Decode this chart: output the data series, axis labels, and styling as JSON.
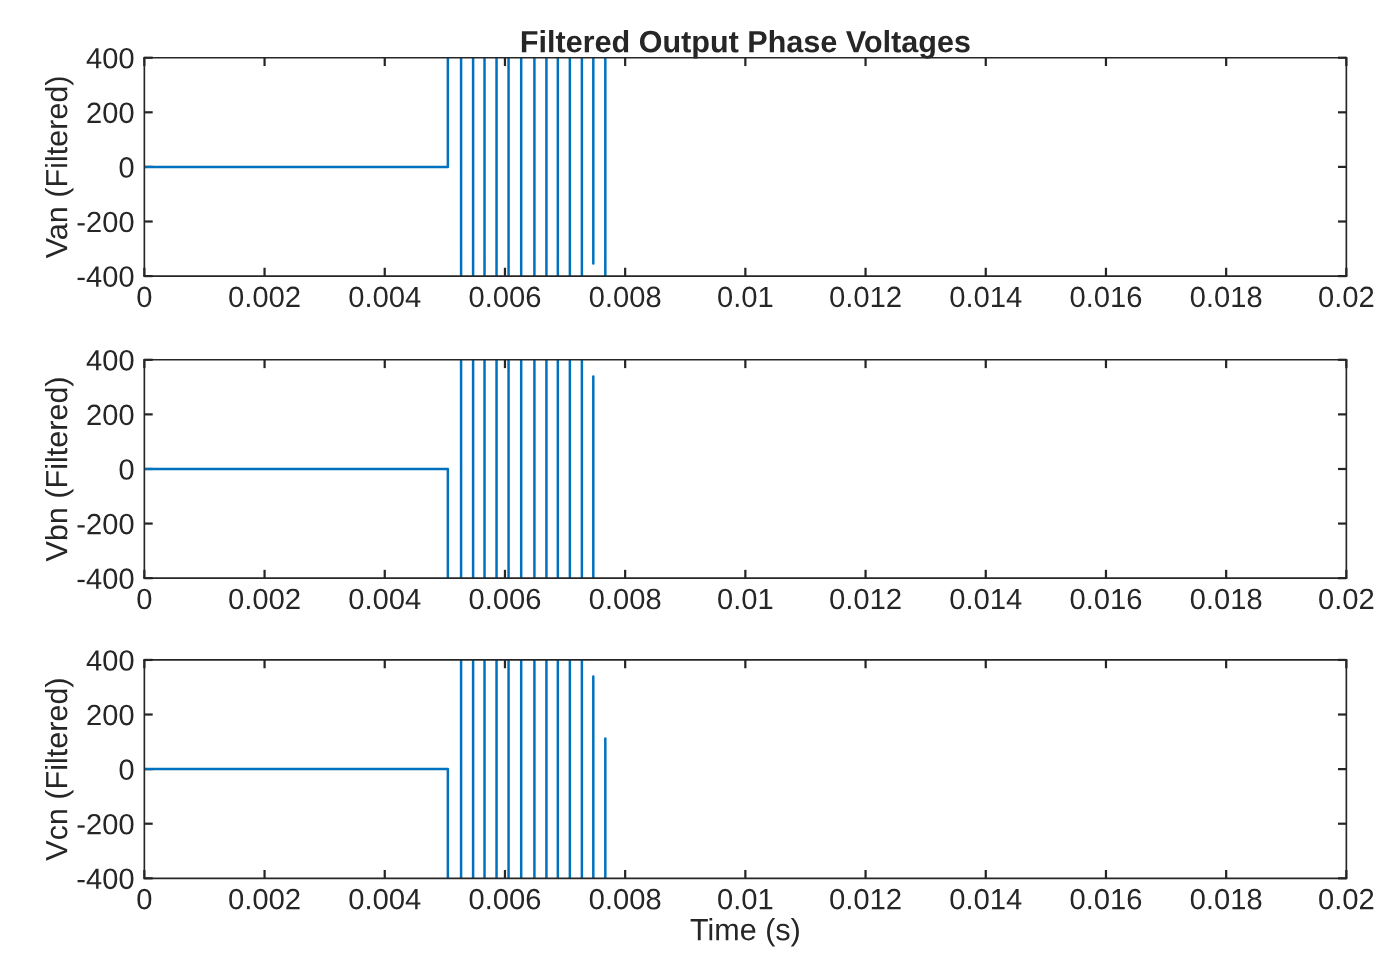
{
  "chart_data": [
    {
      "type": "line",
      "title": "Filtered Output Phase Voltages",
      "ylabel": "Van (Filtered)",
      "xlim": [
        0,
        0.02
      ],
      "xticks": [
        0,
        0.002,
        0.004,
        0.006,
        0.008,
        0.01,
        0.012,
        0.014,
        0.016,
        0.018,
        0.02
      ],
      "ylim": [
        -400,
        400
      ],
      "yticks": [
        -400,
        -200,
        0,
        200,
        400
      ],
      "grid": false,
      "line_style": "solid",
      "marker": "none",
      "series": [
        {
          "color": "#0072bd",
          "x": [
            0,
            0.00505,
            0.00505,
            null,
            0.00527,
            0.00527,
            null,
            0.00547,
            0.00547,
            null,
            0.00566,
            0.00566,
            null,
            0.00586,
            0.00586,
            null,
            0.00606,
            0.00606,
            null,
            0.00627,
            0.00627,
            null,
            0.00649,
            0.00649,
            null,
            0.00669,
            0.00669,
            null,
            0.00688,
            0.00688,
            null,
            0.00708,
            0.00708,
            null,
            0.00728,
            0.00728,
            null,
            0.00747,
            0.00747,
            null,
            0.00767,
            0.00767
          ],
          "values": [
            0,
            0,
            400,
            null,
            400,
            -400,
            null,
            400,
            -400,
            null,
            400,
            -400,
            null,
            400,
            -400,
            null,
            400,
            -400,
            null,
            400,
            -400,
            null,
            400,
            -400,
            null,
            400,
            -400,
            null,
            400,
            -400,
            null,
            400,
            -400,
            null,
            400,
            -400,
            null,
            400,
            -354,
            null,
            400,
            -400
          ]
        }
      ]
    },
    {
      "type": "line",
      "ylabel": "Vbn (Filtered)",
      "xlim": [
        0,
        0.02
      ],
      "xticks": [
        0,
        0.002,
        0.004,
        0.006,
        0.008,
        0.01,
        0.012,
        0.014,
        0.016,
        0.018,
        0.02
      ],
      "ylim": [
        -400,
        400
      ],
      "yticks": [
        -400,
        -200,
        0,
        200,
        400
      ],
      "grid": false,
      "line_style": "solid",
      "marker": "none",
      "series": [
        {
          "color": "#0072bd",
          "x": [
            0,
            0.00505,
            0.00505,
            null,
            0.00527,
            0.00527,
            null,
            0.00547,
            0.00547,
            null,
            0.00566,
            0.00566,
            null,
            0.00586,
            0.00586,
            null,
            0.00606,
            0.00606,
            null,
            0.00627,
            0.00627,
            null,
            0.00649,
            0.00649,
            null,
            0.00669,
            0.00669,
            null,
            0.00688,
            0.00688,
            null,
            0.00708,
            0.00708,
            null,
            0.00728,
            0.00728,
            null,
            0.00747,
            0.00747
          ],
          "values": [
            0,
            0,
            -400,
            null,
            400,
            -400,
            null,
            400,
            -400,
            null,
            400,
            -400,
            null,
            400,
            -400,
            null,
            400,
            -400,
            null,
            400,
            -400,
            null,
            400,
            -400,
            null,
            400,
            -400,
            null,
            400,
            -400,
            null,
            400,
            -400,
            null,
            400,
            -400,
            null,
            -400,
            339
          ]
        }
      ]
    },
    {
      "type": "line",
      "ylabel": "Vcn (Filtered)",
      "xlabel": "Time (s)",
      "xlim": [
        0,
        0.02
      ],
      "xticks": [
        0,
        0.002,
        0.004,
        0.006,
        0.008,
        0.01,
        0.012,
        0.014,
        0.016,
        0.018,
        0.02
      ],
      "ylim": [
        -400,
        400
      ],
      "yticks": [
        -400,
        -200,
        0,
        200,
        400
      ],
      "grid": false,
      "line_style": "solid",
      "marker": "none",
      "series": [
        {
          "color": "#0072bd",
          "x": [
            0,
            0.00505,
            0.00505,
            null,
            0.00527,
            0.00527,
            null,
            0.00547,
            0.00547,
            null,
            0.00566,
            0.00566,
            null,
            0.00586,
            0.00586,
            null,
            0.00606,
            0.00606,
            null,
            0.00627,
            0.00627,
            null,
            0.00649,
            0.00649,
            null,
            0.00669,
            0.00669,
            null,
            0.00688,
            0.00688,
            null,
            0.00708,
            0.00708,
            null,
            0.00728,
            0.00728,
            null,
            0.00747,
            0.00747,
            null,
            0.00767,
            0.00767
          ],
          "values": [
            0,
            0,
            -400,
            null,
            400,
            -400,
            null,
            400,
            -400,
            null,
            400,
            -400,
            null,
            400,
            -400,
            null,
            400,
            -400,
            null,
            400,
            -400,
            null,
            400,
            -400,
            null,
            400,
            -400,
            null,
            400,
            -400,
            null,
            400,
            -400,
            null,
            400,
            -400,
            null,
            -400,
            339,
            null,
            112,
            -400
          ]
        }
      ]
    }
  ]
}
